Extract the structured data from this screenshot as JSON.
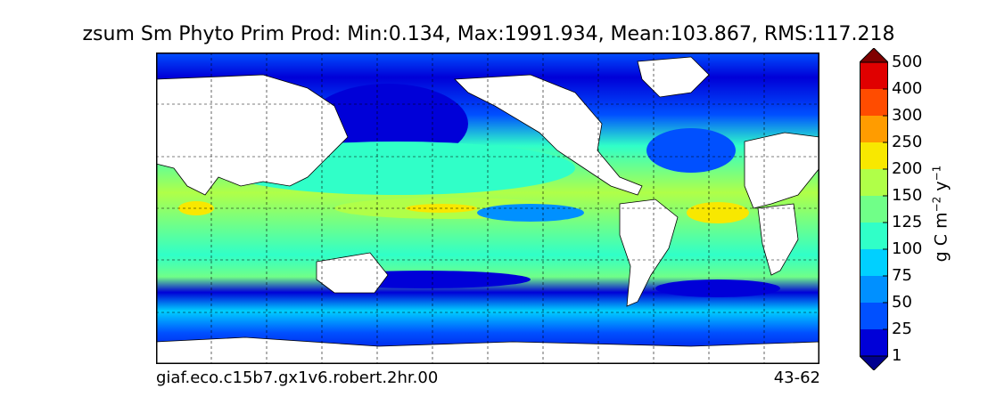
{
  "chart_data": {
    "type": "heatmap",
    "title": "zsum Sm Phyto Prim Prod: Min:0.134, Max:1991.934, Mean:103.867, RMS:117.218",
    "footer_left": "giaf.eco.c15b7.gx1v6.robert.2hr.00",
    "footer_right": "43-62",
    "colorbar": {
      "label_main": "g C m",
      "label_exp1": "−2",
      "label_mid": " y",
      "label_exp2": "−1",
      "levels": [
        1,
        25,
        50,
        75,
        100,
        125,
        150,
        200,
        250,
        300,
        400,
        500
      ],
      "tick_labels": [
        "1",
        "25",
        "50",
        "75",
        "100",
        "125",
        "150",
        "200",
        "250",
        "300",
        "400",
        "500"
      ],
      "colors": [
        "#00008f",
        "#0000d8",
        "#0050ff",
        "#0090ff",
        "#00d0ff",
        "#30ffc8",
        "#70ff88",
        "#b0ff48",
        "#f8e800",
        "#ff9c00",
        "#ff4c00",
        "#e00000",
        "#800000"
      ],
      "extend": "both"
    },
    "grid": true,
    "land_color": "#ffffff"
  }
}
